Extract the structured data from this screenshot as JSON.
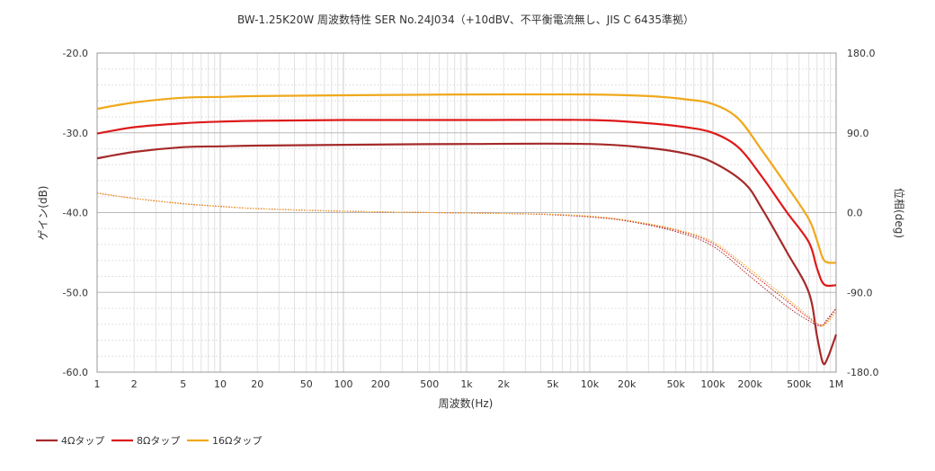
{
  "chart_data": {
    "type": "line",
    "title": "BW-1.25K20W 周波数特性 SER No.24J034（+10dBV、不平衡電流無し、JIS C 6435準拠）",
    "xlabel": "周波数(Hz)",
    "ylabel": "ゲイン(dB)",
    "y2label": "位相(deg)",
    "xscale": "log",
    "xlim": [
      1,
      1000000
    ],
    "ylim": [
      -60,
      -20
    ],
    "y2lim": [
      -180,
      180
    ],
    "grid": true,
    "legend_position": "bottom-left",
    "x_ticks": [
      {
        "v": 1,
        "label": "1"
      },
      {
        "v": 2,
        "label": "2"
      },
      {
        "v": 5,
        "label": "5"
      },
      {
        "v": 10,
        "label": "10"
      },
      {
        "v": 20,
        "label": "20"
      },
      {
        "v": 50,
        "label": "50"
      },
      {
        "v": 100,
        "label": "100"
      },
      {
        "v": 200,
        "label": "200"
      },
      {
        "v": 500,
        "label": "500"
      },
      {
        "v": 1000,
        "label": "1k"
      },
      {
        "v": 2000,
        "label": "2k"
      },
      {
        "v": 5000,
        "label": "5k"
      },
      {
        "v": 10000,
        "label": "10k"
      },
      {
        "v": 20000,
        "label": "20k"
      },
      {
        "v": 50000,
        "label": "50k"
      },
      {
        "v": 100000,
        "label": "100k"
      },
      {
        "v": 200000,
        "label": "200k"
      },
      {
        "v": 500000,
        "label": "500k"
      },
      {
        "v": 1000000,
        "label": "1M"
      }
    ],
    "y_ticks": [
      {
        "v": -20,
        "label": "-20.0"
      },
      {
        "v": -30,
        "label": "-30.0"
      },
      {
        "v": -40,
        "label": "-40.0"
      },
      {
        "v": -50,
        "label": "-50.0"
      },
      {
        "v": -60,
        "label": "-60.0"
      }
    ],
    "y2_ticks": [
      {
        "v": 180,
        "label": "180.0"
      },
      {
        "v": 90,
        "label": "90.0"
      },
      {
        "v": 0,
        "label": "0.0"
      },
      {
        "v": -90,
        "label": "-90.0"
      },
      {
        "v": -180,
        "label": "-180.0"
      }
    ],
    "series": [
      {
        "name": "4Ωタップ",
        "color": "#a52a2a",
        "axis": "gain",
        "x": [
          1,
          2,
          5,
          10,
          20,
          100,
          1000,
          10000,
          30000,
          60000,
          100000,
          180000,
          250000,
          400000,
          600000,
          700000,
          780000,
          850000,
          1000000
        ],
        "y": [
          -33.2,
          -32.4,
          -31.8,
          -31.7,
          -31.6,
          -31.5,
          -31.4,
          -31.4,
          -31.9,
          -32.6,
          -33.7,
          -36.3,
          -39.5,
          -45.0,
          -50.0,
          -55.5,
          -58.8,
          -58.3,
          -55.3
        ]
      },
      {
        "name": "8Ωタップ",
        "color": "#dd1a1a",
        "axis": "gain",
        "x": [
          1,
          2,
          5,
          10,
          20,
          100,
          1000,
          10000,
          30000,
          60000,
          100000,
          160000,
          250000,
          400000,
          600000,
          700000,
          800000,
          1000000
        ],
        "y": [
          -30.1,
          -29.3,
          -28.8,
          -28.6,
          -28.5,
          -28.4,
          -28.4,
          -28.4,
          -28.8,
          -29.3,
          -30.0,
          -31.8,
          -35.5,
          -40.0,
          -43.7,
          -47.0,
          -49.0,
          -49.1
        ]
      },
      {
        "name": "16Ωタップ",
        "color": "#f0a81c",
        "axis": "gain",
        "x": [
          1,
          2,
          5,
          10,
          20,
          100,
          1000,
          10000,
          30000,
          60000,
          100000,
          160000,
          250000,
          400000,
          600000,
          700000,
          800000,
          1000000
        ],
        "y": [
          -27.0,
          -26.2,
          -25.6,
          -25.5,
          -25.4,
          -25.3,
          -25.2,
          -25.2,
          -25.4,
          -25.8,
          -26.4,
          -28.2,
          -32.2,
          -36.7,
          -40.8,
          -43.5,
          -46.0,
          -46.3
        ]
      },
      {
        "name": "4Ωタップ 位相",
        "color": "#a52a2a",
        "axis": "phase",
        "x": [
          1,
          2,
          5,
          10,
          20,
          100,
          1000,
          2000,
          5000,
          10000,
          20000,
          50000,
          100000,
          200000,
          400000,
          600000,
          750000,
          850000,
          1000000
        ],
        "y": [
          22,
          16,
          10,
          7,
          4.5,
          1.5,
          -0.5,
          -1,
          -2.5,
          -5,
          -9.5,
          -21.5,
          -38,
          -72,
          -106,
          -122,
          -128,
          -120,
          -108
        ]
      },
      {
        "name": "8Ωタップ 位相",
        "color": "#dd1a1a",
        "axis": "phase",
        "x": [
          1,
          2,
          5,
          10,
          20,
          100,
          1000,
          2000,
          5000,
          10000,
          20000,
          50000,
          100000,
          200000,
          400000,
          600000,
          750000,
          850000,
          1000000
        ],
        "y": [
          22,
          16,
          10,
          7,
          4.5,
          1.5,
          -0.5,
          -1,
          -2,
          -4.5,
          -9,
          -20,
          -35,
          -67,
          -100,
          -119,
          -127,
          -122,
          -108
        ]
      },
      {
        "name": "16Ωタップ 位相",
        "color": "#f0a81c",
        "axis": "phase",
        "x": [
          1,
          2,
          5,
          10,
          20,
          100,
          1000,
          2000,
          5000,
          10000,
          20000,
          50000,
          100000,
          200000,
          400000,
          600000,
          750000,
          850000,
          1000000
        ],
        "y": [
          22,
          16,
          10,
          7,
          4.5,
          1.5,
          -0.5,
          -1,
          -2,
          -4,
          -8.5,
          -19,
          -33,
          -64,
          -97,
          -117,
          -128,
          -124,
          -112
        ]
      }
    ]
  }
}
